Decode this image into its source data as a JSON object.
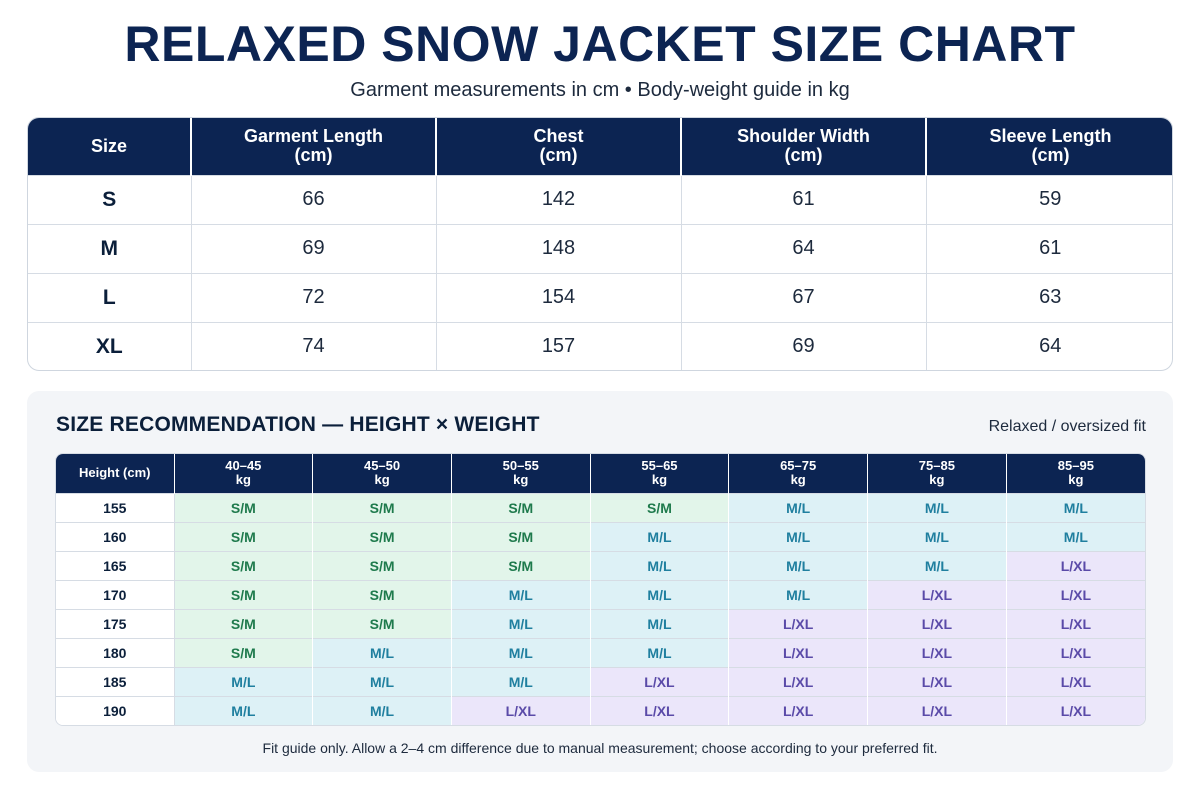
{
  "title": "RELAXED SNOW JACKET SIZE CHART",
  "subtitle": "Garment measurements in cm • Body-weight guide in kg",
  "measurements": {
    "headers": [
      {
        "line1": "Size",
        "line2": ""
      },
      {
        "line1": "Garment Length",
        "line2": "(cm)"
      },
      {
        "line1": "Chest",
        "line2": "(cm)"
      },
      {
        "line1": "Shoulder Width",
        "line2": "(cm)"
      },
      {
        "line1": "Sleeve Length",
        "line2": "(cm)"
      }
    ],
    "rows": [
      [
        "S",
        "66",
        "142",
        "61",
        "59"
      ],
      [
        "M",
        "69",
        "148",
        "64",
        "61"
      ],
      [
        "L",
        "72",
        "154",
        "67",
        "63"
      ],
      [
        "XL",
        "74",
        "157",
        "69",
        "64"
      ]
    ]
  },
  "recommendation": {
    "title": "SIZE RECOMMENDATION — HEIGHT × WEIGHT",
    "fit_note": "Relaxed / oversized fit",
    "corner_header": "Height (cm)",
    "weight_headers": [
      {
        "range": "40–45",
        "unit": "kg"
      },
      {
        "range": "45–50",
        "unit": "kg"
      },
      {
        "range": "50–55",
        "unit": "kg"
      },
      {
        "range": "55–65",
        "unit": "kg"
      },
      {
        "range": "65–75",
        "unit": "kg"
      },
      {
        "range": "75–85",
        "unit": "kg"
      },
      {
        "range": "85–95",
        "unit": "kg"
      }
    ],
    "rows": [
      {
        "height": "155",
        "sizes": [
          "S/M",
          "S/M",
          "S/M",
          "S/M",
          "M/L",
          "M/L",
          "M/L"
        ]
      },
      {
        "height": "160",
        "sizes": [
          "S/M",
          "S/M",
          "S/M",
          "M/L",
          "M/L",
          "M/L",
          "M/L"
        ]
      },
      {
        "height": "165",
        "sizes": [
          "S/M",
          "S/M",
          "S/M",
          "M/L",
          "M/L",
          "M/L",
          "L/XL"
        ]
      },
      {
        "height": "170",
        "sizes": [
          "S/M",
          "S/M",
          "M/L",
          "M/L",
          "M/L",
          "L/XL",
          "L/XL"
        ]
      },
      {
        "height": "175",
        "sizes": [
          "S/M",
          "S/M",
          "M/L",
          "M/L",
          "L/XL",
          "L/XL",
          "L/XL"
        ]
      },
      {
        "height": "180",
        "sizes": [
          "S/M",
          "M/L",
          "M/L",
          "M/L",
          "L/XL",
          "L/XL",
          "L/XL"
        ]
      },
      {
        "height": "185",
        "sizes": [
          "M/L",
          "M/L",
          "M/L",
          "L/XL",
          "L/XL",
          "L/XL",
          "L/XL"
        ]
      },
      {
        "height": "190",
        "sizes": [
          "M/L",
          "M/L",
          "L/XL",
          "L/XL",
          "L/XL",
          "L/XL",
          "L/XL"
        ]
      }
    ],
    "colors": {
      "S/M": {
        "bg": "#e2f5ea",
        "fg": "#1e7a4c"
      },
      "M/L": {
        "bg": "#ddf1f6",
        "fg": "#1f7f9f"
      },
      "L/XL": {
        "bg": "#ebe6fa",
        "fg": "#5a4aa8"
      }
    }
  },
  "footnote": "Fit guide only. Allow a 2–4 cm difference due to manual measurement; choose according to your preferred fit.",
  "theme": {
    "header_bg": "#0c2452",
    "title_color": "#0c2452"
  }
}
